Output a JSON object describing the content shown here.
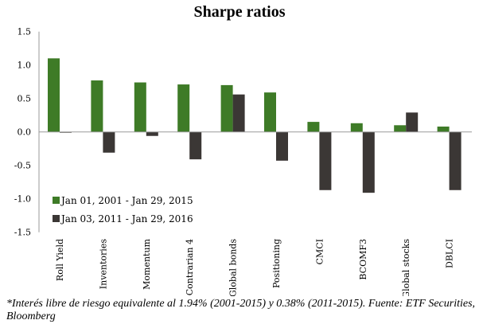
{
  "chart_data": {
    "type": "bar",
    "title": "Sharpe ratios",
    "categories": [
      "Roll Yield",
      "Inventories",
      "Momentum",
      "Contrarian 4",
      "Global bonds",
      "Positioning",
      "CMCI",
      "BCOMF3",
      "Global stocks",
      "DBLCI"
    ],
    "series": [
      {
        "name": "Jan 01, 2001 - Jan 29, 2015",
        "color": "#3e7b27",
        "values": [
          1.1,
          0.77,
          0.74,
          0.71,
          0.7,
          0.59,
          0.15,
          0.13,
          0.1,
          0.08
        ]
      },
      {
        "name": "Jan 03, 2011 - Jan 29, 2016",
        "color": "#3b3735",
        "values": [
          -0.01,
          -0.31,
          -0.06,
          -0.41,
          0.56,
          -0.43,
          -0.87,
          -0.91,
          0.29,
          -0.87
        ]
      }
    ],
    "ylim": [
      -1.5,
      1.5
    ],
    "yticks": [
      "1.5",
      "1.0",
      "0.5",
      "0.0",
      "-0.5",
      "-1.0",
      "-1.5"
    ],
    "ytick_values": [
      1.5,
      1.0,
      0.5,
      0.0,
      -0.5,
      -1.0,
      -1.5
    ],
    "grid": false,
    "legend_position": "bottom-left"
  },
  "footnote": "*Interés libre de riesgo equivalente al 1.94% (2001-2015) y 0.38% (2011-2015). Fuente: ETF Securities, Bloomberg"
}
